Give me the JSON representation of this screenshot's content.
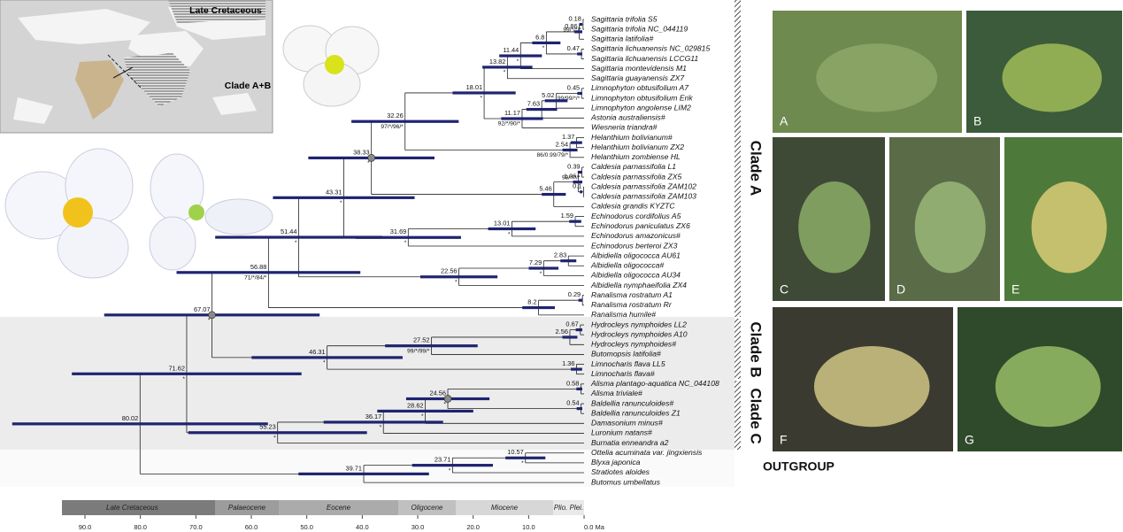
{
  "map": {
    "title": "Late Cretaceous",
    "label": "Clade A+B"
  },
  "taxa": [
    "Sagittaria trifolia S5",
    "Sagittaria trifolia NC_044119",
    "Sagittaria latifolia#",
    "Sagittaria lichuanensis NC_029815",
    "Sagittaria lichuanensis LCCG11",
    "Sagittaria montevidensis M1",
    "Sagittaria guayanensis ZX7",
    "Limnophyton obtusifolium A7",
    "Limnophyton obtusifolium Erik",
    "Limnophyton angolense LIM2",
    "Astonia australiensis#",
    "Wiesneria triandra#",
    "Helanthium bolivianum#",
    "Helanthium bolivianum ZX2",
    "Helanthium zombiense HL",
    "Caldesia parnassifolia L1",
    "Caldesia parnassifolia ZX5",
    "Caldesia parnassifolia ZAM102",
    "Caldesia parnassifolia ZAM103",
    "Caldesia grandis KYZTC",
    "Echinodorus cordifolius A5",
    "Echinodorus paniculatus ZX6",
    "Echinodorus amazonicus#",
    "Echinodorus berteroi ZX3",
    "Albidiella oligococca AU61",
    "Albidiella oligococca#",
    "Albidiella oligococca AU34",
    "Albidiella nymphaeifolia ZX4",
    "Ranalisma rostratum A1",
    "Ranalisma rostratum Rr",
    "Ranalisma humile#",
    "Hydrocleys nymphoides LL2",
    "Hydrocleys nymphoides A10",
    "Hydrocleys nymphoides#",
    "Butomopsis latifolia#",
    "Limnocharis flava LL5",
    "Limnocharis flava#",
    "Alisma plantago-aquatica NC_044108",
    "Alisma triviale#",
    "Baldellia ranunculoides#",
    "Baldellia ranunculoides Z1",
    "Damasonium minus#",
    "Luronium natans#",
    "Burnatia enneandra a2",
    "Ottelia acuminata var. jingxiensis",
    "Blyxa japonica",
    "Stratiotes aloides",
    "Butomus umbellatus"
  ],
  "nodes": [
    {
      "age": "80.02"
    },
    {
      "age": "71.62",
      "support": "*"
    },
    {
      "age": "67.07",
      "support": "*"
    },
    {
      "age": "56.88",
      "support": "71/*/84/*"
    },
    {
      "age": "51.44",
      "support": "*"
    },
    {
      "age": "43.31",
      "support": "*"
    },
    {
      "age": "38.33",
      "support": "*"
    },
    {
      "age": "32.26",
      "support": "97/*/96/*"
    },
    {
      "age": "18.01",
      "support": "*"
    },
    {
      "age": "13.82",
      "support": "*"
    },
    {
      "age": "11.44",
      "support": "*"
    },
    {
      "age": "6.8",
      "support": "*"
    },
    {
      "age": "0.86"
    },
    {
      "age": "0.18",
      "support": "99/*/*/*"
    },
    {
      "age": "0.47"
    },
    {
      "age": "11.17",
      "support": "92/*/90/*"
    },
    {
      "age": "7.63"
    },
    {
      "age": "5.02"
    },
    {
      "age": "0.45",
      "support": "99/99/*/*"
    },
    {
      "age": "2.54",
      "support": "86/0.99/79/*"
    },
    {
      "age": "1.37"
    },
    {
      "age": "5.46"
    },
    {
      "age": "1.06"
    },
    {
      "age": "0.39",
      "support": "99/*/*/*"
    },
    {
      "age": "0.1"
    },
    {
      "age": "31.69",
      "support": "*"
    },
    {
      "age": "13.01",
      "support": "*"
    },
    {
      "age": "1.59"
    },
    {
      "age": "22.56",
      "support": "*"
    },
    {
      "age": "7.29",
      "support": "*"
    },
    {
      "age": "2.83"
    },
    {
      "age": "8.2"
    },
    {
      "age": "0.29"
    },
    {
      "age": "46.31",
      "support": "*"
    },
    {
      "age": "27.52",
      "support": "99/*/99/*"
    },
    {
      "age": "2.56"
    },
    {
      "age": "0.67"
    },
    {
      "age": "1.36"
    },
    {
      "age": "55.23",
      "support": "*"
    },
    {
      "age": "36.17",
      "support": "*"
    },
    {
      "age": "28.62",
      "support": "*"
    },
    {
      "age": "24.56",
      "support": "*"
    },
    {
      "age": "0.58"
    },
    {
      "age": "0.54"
    },
    {
      "age": "39.71"
    },
    {
      "age": "23.71",
      "support": "*"
    },
    {
      "age": "10.57",
      "support": "*"
    }
  ],
  "clades": [
    "Clade A",
    "Clade B",
    "Clade C",
    "OUTGROUP"
  ],
  "timescale": {
    "epochs": [
      "Late Cretaceous",
      "Palaeocene",
      "Eocene",
      "Oligocene",
      "Miocene",
      "Plio. Plei."
    ],
    "ticks": [
      "90.0",
      "80.0",
      "70.0",
      "60.0",
      "50.0",
      "40.0",
      "30.0",
      "20.0",
      "10.0",
      "0.0 Ma"
    ]
  },
  "photos": [
    "A",
    "B",
    "C",
    "D",
    "E",
    "F",
    "G"
  ]
}
